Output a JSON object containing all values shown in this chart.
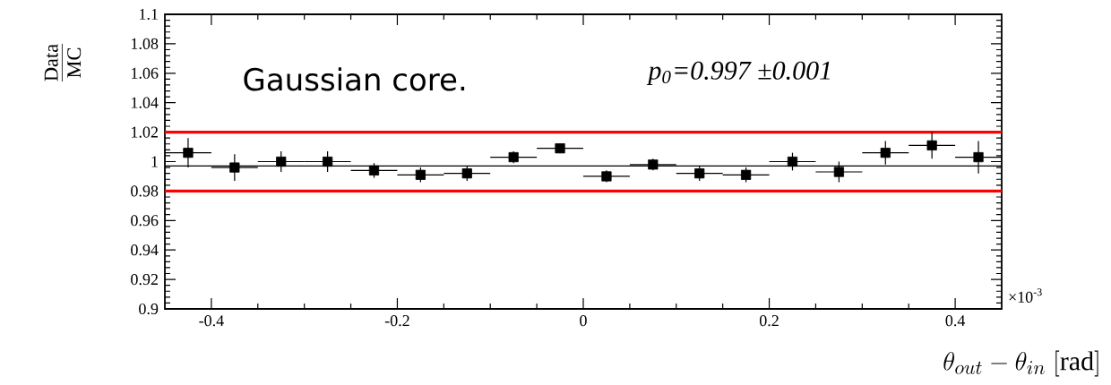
{
  "chart_data": {
    "type": "scatter",
    "ylabel": "\\frac{\\mathrm{Data}}{\\mathrm{MC}}",
    "xlabel": "\\theta_{out} - \\theta_{in}\\ [\\mathrm{rad}]",
    "x": [
      -0.425,
      -0.375,
      -0.325,
      -0.275,
      -0.225,
      -0.175,
      -0.125,
      -0.075,
      -0.025,
      0.025,
      0.075,
      0.125,
      0.175,
      0.225,
      0.275,
      0.325,
      0.375,
      0.425
    ],
    "values": [
      1.006,
      0.996,
      1.0,
      1.0,
      0.994,
      0.991,
      0.992,
      1.003,
      1.009,
      0.99,
      0.998,
      0.992,
      0.991,
      1.0,
      0.993,
      1.006,
      1.011,
      1.003
    ],
    "errors": [
      0.01,
      0.009,
      0.007,
      0.007,
      0.005,
      0.005,
      0.005,
      0.004,
      0.003,
      0.004,
      0.004,
      0.005,
      0.005,
      0.006,
      0.007,
      0.008,
      0.009,
      0.011
    ],
    "xerrors": [
      0.025,
      0.025,
      0.025,
      0.025,
      0.025,
      0.025,
      0.025,
      0.025,
      0.025,
      0.025,
      0.025,
      0.025,
      0.025,
      0.025,
      0.025,
      0.025,
      0.025,
      0.025
    ],
    "color": "#000000",
    "marker": "square",
    "xlim": [
      -0.45,
      0.45
    ],
    "xticks": [
      -0.4,
      -0.2,
      0,
      0.2,
      0.4
    ],
    "ylim": [
      0.9,
      1.1
    ],
    "yticks": [
      0.9,
      0.92,
      0.94,
      0.96,
      0.98,
      1,
      1.02,
      1.04,
      1.06,
      1.08,
      1.1
    ],
    "ref_lines": [
      {
        "axis": "y",
        "value": 1.02,
        "color": "#ff0000"
      },
      {
        "axis": "y",
        "value": 0.98,
        "color": "#ff0000"
      },
      {
        "axis": "y",
        "value": 0.997,
        "color": "#000000"
      }
    ],
    "annotations": [
      "Gaussian core.",
      "p$_{0}$=0.997 ±0.001",
      "×10$^{-3}$"
    ],
    "grid": false
  }
}
